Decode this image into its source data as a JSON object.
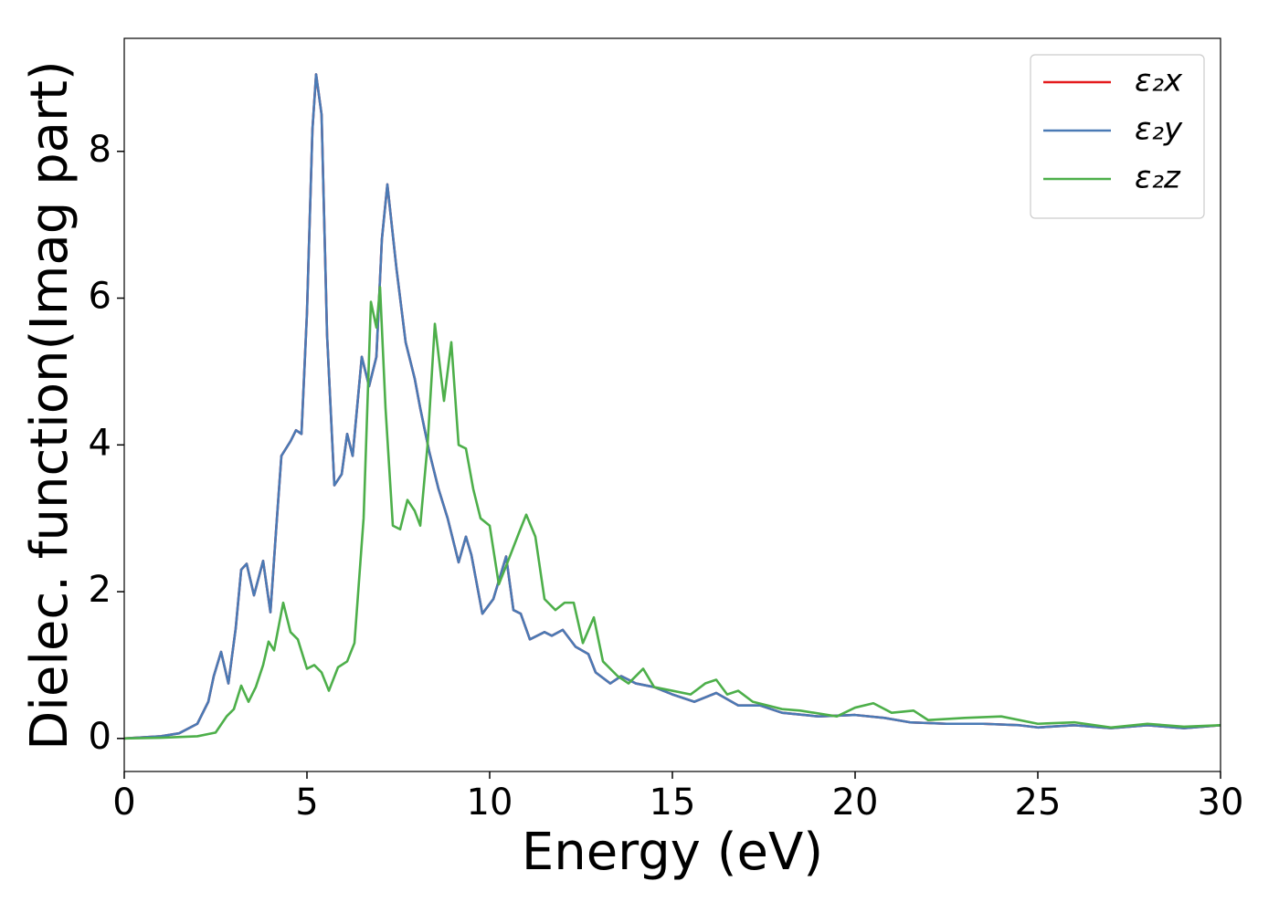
{
  "chart_data": {
    "type": "line",
    "xlabel": "Energy (eV)",
    "ylabel": "Dielec. function(Imag part)",
    "xlim": [
      0,
      30
    ],
    "xticks": [
      0,
      5,
      10,
      15,
      20,
      25,
      30
    ],
    "ylim": [
      -0.45,
      9.54
    ],
    "yticks": [
      0,
      2,
      4,
      6,
      8
    ],
    "legend": "upper right",
    "series": [
      {
        "name": "ε₂x",
        "color": "#e41a1c",
        "x": [
          0,
          1,
          1.5,
          2,
          2.3,
          2.45,
          2.65,
          2.85,
          3.05,
          3.2,
          3.35,
          3.55,
          3.8,
          4.0,
          4.15,
          4.3,
          4.55,
          4.7,
          4.85,
          5.0,
          5.15,
          5.25,
          5.4,
          5.55,
          5.75,
          5.95,
          6.1,
          6.25,
          6.5,
          6.7,
          6.9,
          7.05,
          7.2,
          7.45,
          7.7,
          7.95,
          8.1,
          8.35,
          8.6,
          8.85,
          9.15,
          9.35,
          9.5,
          9.8,
          10.1,
          10.45,
          10.65,
          10.85,
          11.1,
          11.5,
          11.7,
          12.0,
          12.35,
          12.7,
          12.9,
          13.3,
          13.6,
          14,
          14.5,
          15,
          15.6,
          16.2,
          16.8,
          17.4,
          18,
          19,
          20,
          20.8,
          21.5,
          22.5,
          23.5,
          24.5,
          25,
          26,
          27,
          28,
          29,
          30
        ],
        "values": [
          0,
          0.03,
          0.07,
          0.2,
          0.5,
          0.85,
          1.18,
          0.75,
          1.5,
          2.3,
          2.38,
          1.95,
          2.42,
          1.72,
          2.8,
          3.85,
          4.05,
          4.2,
          4.15,
          5.8,
          8.3,
          9.05,
          8.5,
          5.5,
          3.45,
          3.6,
          4.15,
          3.85,
          5.2,
          4.8,
          5.2,
          6.8,
          7.55,
          6.4,
          5.4,
          4.9,
          4.5,
          3.9,
          3.4,
          3.0,
          2.4,
          2.75,
          2.5,
          1.7,
          1.9,
          2.48,
          1.75,
          1.7,
          1.35,
          1.45,
          1.4,
          1.48,
          1.25,
          1.15,
          0.9,
          0.75,
          0.85,
          0.75,
          0.7,
          0.6,
          0.5,
          0.62,
          0.45,
          0.45,
          0.35,
          0.3,
          0.32,
          0.28,
          0.22,
          0.2,
          0.2,
          0.18,
          0.15,
          0.18,
          0.14,
          0.18,
          0.14,
          0.18
        ]
      },
      {
        "name": "ε₂y",
        "color": "#4a7ab5",
        "x": [
          0,
          1,
          1.5,
          2,
          2.3,
          2.45,
          2.65,
          2.85,
          3.05,
          3.2,
          3.35,
          3.55,
          3.8,
          4.0,
          4.15,
          4.3,
          4.55,
          4.7,
          4.85,
          5.0,
          5.15,
          5.25,
          5.4,
          5.55,
          5.75,
          5.95,
          6.1,
          6.25,
          6.5,
          6.7,
          6.9,
          7.05,
          7.2,
          7.45,
          7.7,
          7.95,
          8.1,
          8.35,
          8.6,
          8.85,
          9.15,
          9.35,
          9.5,
          9.8,
          10.1,
          10.45,
          10.65,
          10.85,
          11.1,
          11.5,
          11.7,
          12.0,
          12.35,
          12.7,
          12.9,
          13.3,
          13.6,
          14,
          14.5,
          15,
          15.6,
          16.2,
          16.8,
          17.4,
          18,
          19,
          20,
          20.8,
          21.5,
          22.5,
          23.5,
          24.5,
          25,
          26,
          27,
          28,
          29,
          30
        ],
        "values": [
          0,
          0.03,
          0.07,
          0.2,
          0.5,
          0.85,
          1.18,
          0.75,
          1.5,
          2.3,
          2.38,
          1.95,
          2.42,
          1.72,
          2.8,
          3.85,
          4.05,
          4.2,
          4.15,
          5.8,
          8.3,
          9.05,
          8.5,
          5.5,
          3.45,
          3.6,
          4.15,
          3.85,
          5.2,
          4.8,
          5.2,
          6.8,
          7.55,
          6.4,
          5.4,
          4.9,
          4.5,
          3.9,
          3.4,
          3.0,
          2.4,
          2.75,
          2.5,
          1.7,
          1.9,
          2.48,
          1.75,
          1.7,
          1.35,
          1.45,
          1.4,
          1.48,
          1.25,
          1.15,
          0.9,
          0.75,
          0.85,
          0.75,
          0.7,
          0.6,
          0.5,
          0.62,
          0.45,
          0.45,
          0.35,
          0.3,
          0.32,
          0.28,
          0.22,
          0.2,
          0.2,
          0.18,
          0.15,
          0.18,
          0.14,
          0.18,
          0.14,
          0.18
        ]
      },
      {
        "name": "ε₂z",
        "color": "#4daf4a",
        "x": [
          0,
          1,
          2,
          2.5,
          2.8,
          3.0,
          3.2,
          3.4,
          3.6,
          3.8,
          3.95,
          4.1,
          4.35,
          4.55,
          4.75,
          5.0,
          5.2,
          5.4,
          5.6,
          5.85,
          6.1,
          6.3,
          6.55,
          6.75,
          6.9,
          7.0,
          7.15,
          7.35,
          7.55,
          7.75,
          7.95,
          8.1,
          8.3,
          8.5,
          8.75,
          8.95,
          9.15,
          9.35,
          9.55,
          9.75,
          10.0,
          10.25,
          10.45,
          10.8,
          11.0,
          11.25,
          11.5,
          11.8,
          12.05,
          12.3,
          12.55,
          12.85,
          13.1,
          13.5,
          13.8,
          14.2,
          14.5,
          15,
          15.5,
          15.9,
          16.2,
          16.5,
          16.8,
          17.2,
          17.6,
          18,
          18.5,
          19.5,
          20,
          20.5,
          21,
          21.6,
          22,
          23,
          24,
          25,
          26,
          27,
          28,
          29,
          30
        ],
        "values": [
          0,
          0.01,
          0.03,
          0.08,
          0.3,
          0.4,
          0.72,
          0.5,
          0.7,
          1.0,
          1.32,
          1.2,
          1.85,
          1.45,
          1.35,
          0.95,
          1.0,
          0.9,
          0.65,
          0.97,
          1.05,
          1.3,
          3.0,
          5.95,
          5.6,
          6.15,
          4.5,
          2.9,
          2.85,
          3.25,
          3.1,
          2.9,
          4.0,
          5.65,
          4.6,
          5.4,
          4.0,
          3.95,
          3.4,
          3.0,
          2.9,
          2.1,
          2.35,
          2.8,
          3.05,
          2.75,
          1.9,
          1.75,
          1.85,
          1.85,
          1.3,
          1.65,
          1.05,
          0.85,
          0.75,
          0.95,
          0.7,
          0.65,
          0.6,
          0.75,
          0.8,
          0.6,
          0.65,
          0.5,
          0.45,
          0.4,
          0.38,
          0.3,
          0.42,
          0.48,
          0.35,
          0.38,
          0.25,
          0.28,
          0.3,
          0.2,
          0.22,
          0.15,
          0.2,
          0.16,
          0.18
        ]
      }
    ]
  }
}
